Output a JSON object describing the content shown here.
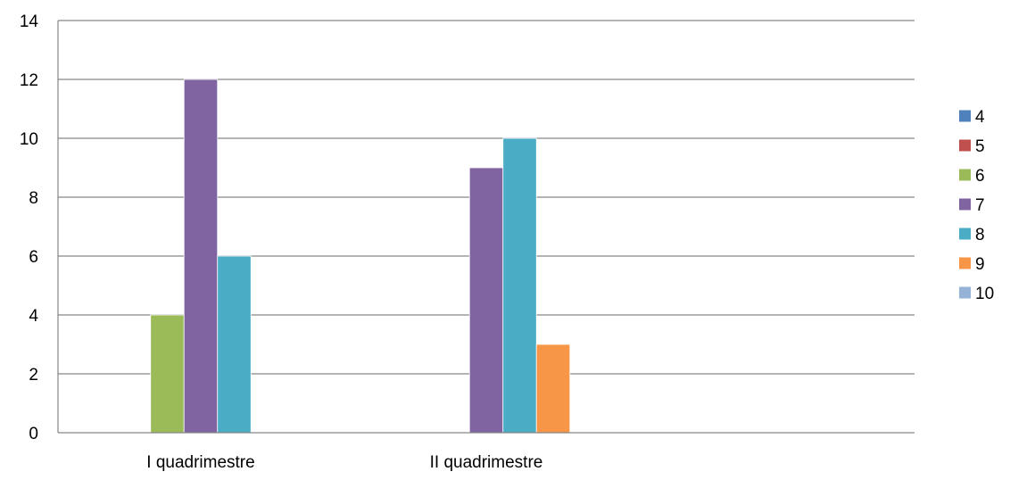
{
  "chart_data": {
    "type": "bar",
    "categories": [
      "I quadrimestre",
      "II quadrimestre",
      ""
    ],
    "series": [
      {
        "name": "4",
        "values": [
          0,
          0,
          0
        ],
        "color": "#4F81BD"
      },
      {
        "name": "5",
        "values": [
          0,
          0,
          0
        ],
        "color": "#C0504D"
      },
      {
        "name": "6",
        "values": [
          4,
          0,
          0
        ],
        "color": "#9BBB59"
      },
      {
        "name": "7",
        "values": [
          12,
          9,
          0
        ],
        "color": "#8064A2"
      },
      {
        "name": "8",
        "values": [
          6,
          10,
          0
        ],
        "color": "#4BACC6"
      },
      {
        "name": "9",
        "values": [
          0,
          3,
          0
        ],
        "color": "#F79646"
      },
      {
        "name": "10",
        "values": [
          0,
          0,
          0
        ],
        "color": "#95B3D7"
      }
    ],
    "yticks": [
      "0",
      "2",
      "4",
      "6",
      "8",
      "10",
      "12",
      "14"
    ],
    "ylim": [
      0,
      14
    ],
    "grid": true,
    "legend_position": "right",
    "title": "",
    "xlabel": "",
    "ylabel": ""
  }
}
